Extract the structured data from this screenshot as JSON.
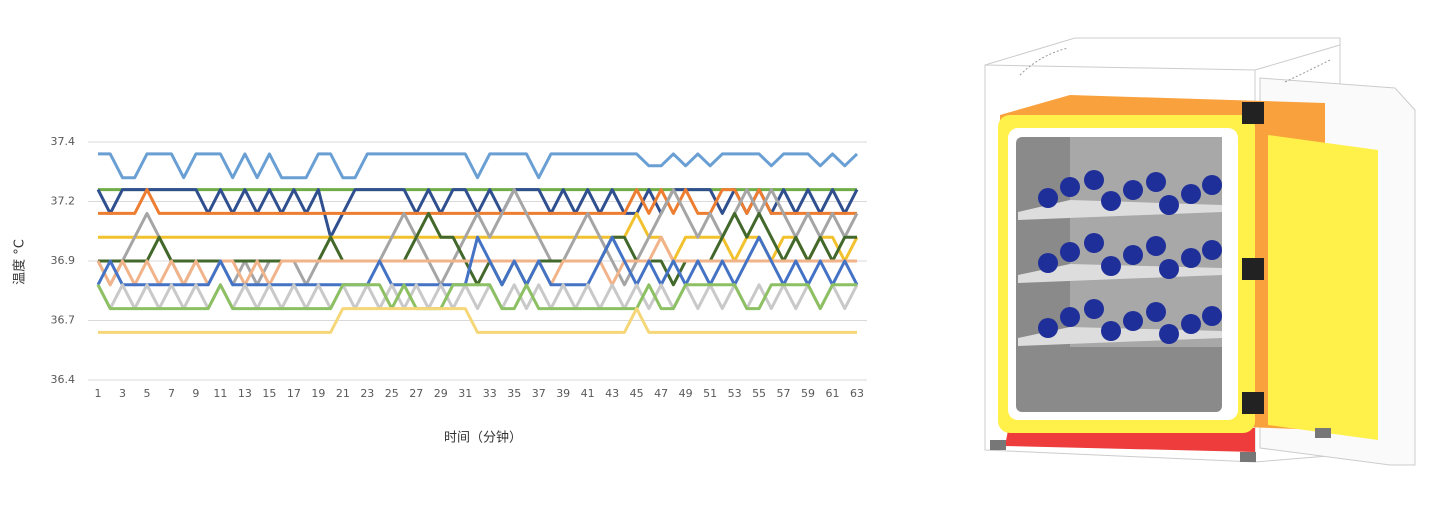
{
  "chart_data": {
    "type": "line",
    "y_label": "温度 °C",
    "x_label": "时间（分钟）",
    "x": [
      1,
      2,
      3,
      4,
      5,
      6,
      7,
      8,
      9,
      10,
      11,
      12,
      13,
      14,
      15,
      16,
      17,
      18,
      19,
      20,
      21,
      22,
      23,
      24,
      25,
      26,
      27,
      28,
      29,
      30,
      31,
      32,
      33,
      34,
      35,
      36,
      37,
      38,
      39,
      40,
      41,
      42,
      43,
      44,
      45,
      46,
      47,
      48,
      49,
      50,
      51,
      52,
      53,
      54,
      55,
      56,
      57,
      58,
      59,
      60,
      61,
      62,
      63
    ],
    "xlim": [
      1,
      63
    ],
    "xticks": [
      1,
      3,
      5,
      7,
      9,
      11,
      13,
      15,
      17,
      19,
      21,
      23,
      25,
      27,
      29,
      31,
      33,
      35,
      37,
      39,
      41,
      43,
      45,
      47,
      49,
      51,
      53,
      55,
      57,
      59,
      61,
      63
    ],
    "ylim": [
      36.4,
      37.4
    ],
    "yticks": [
      36.4,
      {
        "value": 36.65,
        "label": "36.7"
      },
      36.9,
      {
        "value": 37.15,
        "label": "37.2"
      },
      37.4
    ],
    "grid": true,
    "series": [
      {
        "color": "#6a9fd4",
        "values": [
          37.35,
          37.35,
          37.25,
          37.25,
          37.35,
          37.35,
          37.35,
          37.25,
          37.35,
          37.35,
          37.35,
          37.25,
          37.35,
          37.25,
          37.35,
          37.25,
          37.25,
          37.25,
          37.35,
          37.35,
          37.25,
          37.25,
          37.35,
          37.35,
          37.35,
          37.35,
          37.35,
          37.35,
          37.35,
          37.35,
          37.35,
          37.25,
          37.35,
          37.35,
          37.35,
          37.35,
          37.25,
          37.35,
          37.35,
          37.35,
          37.35,
          37.35,
          37.35,
          37.35,
          37.35,
          37.3,
          37.3,
          37.35,
          37.3,
          37.35,
          37.3,
          37.35,
          37.35,
          37.35,
          37.35,
          37.3,
          37.35,
          37.35,
          37.35,
          37.3,
          37.35,
          37.3,
          37.35
        ]
      },
      {
        "color": "#70ad47",
        "values": [
          37.2,
          37.2,
          37.2,
          37.2,
          37.2,
          37.2,
          37.2,
          37.2,
          37.2,
          37.2,
          37.2,
          37.2,
          37.2,
          37.2,
          37.2,
          37.2,
          37.2,
          37.2,
          37.2,
          37.2,
          37.2,
          37.2,
          37.2,
          37.2,
          37.2,
          37.2,
          37.2,
          37.2,
          37.2,
          37.2,
          37.2,
          37.2,
          37.2,
          37.2,
          37.2,
          37.2,
          37.2,
          37.2,
          37.2,
          37.2,
          37.2,
          37.2,
          37.2,
          37.2,
          37.2,
          37.2,
          37.2,
          37.2,
          37.2,
          37.2,
          37.2,
          37.2,
          37.2,
          37.2,
          37.2,
          37.2,
          37.2,
          37.2,
          37.2,
          37.2,
          37.2,
          37.2,
          37.2
        ]
      },
      {
        "color": "#2f4f8f",
        "values": [
          37.2,
          37.1,
          37.2,
          37.2,
          37.2,
          37.2,
          37.2,
          37.2,
          37.2,
          37.1,
          37.2,
          37.1,
          37.2,
          37.1,
          37.2,
          37.1,
          37.2,
          37.1,
          37.2,
          37.0,
          37.1,
          37.2,
          37.2,
          37.2,
          37.2,
          37.2,
          37.1,
          37.2,
          37.1,
          37.2,
          37.2,
          37.1,
          37.2,
          37.1,
          37.2,
          37.2,
          37.2,
          37.1,
          37.2,
          37.1,
          37.2,
          37.1,
          37.2,
          37.1,
          37.1,
          37.2,
          37.1,
          37.2,
          37.2,
          37.2,
          37.2,
          37.1,
          37.2,
          37.1,
          37.2,
          37.1,
          37.2,
          37.1,
          37.2,
          37.1,
          37.2,
          37.1,
          37.2
        ]
      },
      {
        "color": "#ed7d31",
        "values": [
          37.1,
          37.1,
          37.1,
          37.1,
          37.2,
          37.1,
          37.1,
          37.1,
          37.1,
          37.1,
          37.1,
          37.1,
          37.1,
          37.1,
          37.1,
          37.1,
          37.1,
          37.1,
          37.1,
          37.1,
          37.1,
          37.1,
          37.1,
          37.1,
          37.1,
          37.1,
          37.1,
          37.1,
          37.1,
          37.1,
          37.1,
          37.1,
          37.1,
          37.1,
          37.1,
          37.1,
          37.1,
          37.1,
          37.1,
          37.1,
          37.1,
          37.1,
          37.1,
          37.1,
          37.2,
          37.1,
          37.2,
          37.1,
          37.2,
          37.1,
          37.1,
          37.2,
          37.2,
          37.1,
          37.2,
          37.1,
          37.1,
          37.1,
          37.1,
          37.1,
          37.1,
          37.1,
          37.1
        ]
      },
      {
        "color": "#f2c22e",
        "values": [
          37.0,
          37.0,
          37.0,
          37.0,
          37.0,
          37.0,
          37.0,
          37.0,
          37.0,
          37.0,
          37.0,
          37.0,
          37.0,
          37.0,
          37.0,
          37.0,
          37.0,
          37.0,
          37.0,
          37.0,
          37.0,
          37.0,
          37.0,
          37.0,
          37.0,
          37.0,
          37.0,
          37.0,
          37.0,
          37.0,
          37.0,
          37.0,
          37.0,
          37.0,
          37.0,
          37.0,
          37.0,
          37.0,
          37.0,
          37.0,
          37.0,
          37.0,
          37.0,
          37.0,
          37.1,
          37.0,
          37.0,
          36.9,
          37.0,
          37.0,
          37.0,
          37.0,
          36.9,
          37.0,
          37.0,
          36.9,
          37.0,
          37.0,
          36.9,
          37.0,
          37.0,
          36.9,
          37.0
        ]
      },
      {
        "color": "#a5a5a5",
        "values": [
          36.9,
          36.8,
          36.9,
          37.0,
          37.1,
          37.0,
          36.9,
          36.8,
          36.9,
          36.9,
          36.9,
          36.8,
          36.9,
          36.8,
          36.9,
          36.9,
          36.9,
          36.8,
          36.9,
          36.9,
          36.9,
          36.9,
          36.9,
          36.9,
          37.0,
          37.1,
          37.0,
          36.9,
          36.8,
          36.9,
          37.0,
          37.1,
          37.0,
          37.1,
          37.2,
          37.1,
          37.0,
          36.9,
          36.9,
          37.0,
          37.1,
          37.0,
          36.9,
          36.8,
          36.9,
          37.0,
          37.1,
          37.2,
          37.1,
          37.0,
          37.1,
          37.0,
          37.1,
          37.2,
          37.1,
          37.2,
          37.1,
          37.0,
          37.1,
          37.0,
          37.1,
          37.0,
          37.1
        ]
      },
      {
        "color": "#43682b",
        "values": [
          36.9,
          36.9,
          36.9,
          36.9,
          36.9,
          37.0,
          36.9,
          36.9,
          36.9,
          36.9,
          36.9,
          36.9,
          36.9,
          36.9,
          36.9,
          36.9,
          36.9,
          36.9,
          36.9,
          37.0,
          36.9,
          36.9,
          36.9,
          36.9,
          36.9,
          36.9,
          37.0,
          37.1,
          37.0,
          37.0,
          36.9,
          36.8,
          36.9,
          36.8,
          36.9,
          36.8,
          36.9,
          36.9,
          36.9,
          36.9,
          36.9,
          36.9,
          37.0,
          37.0,
          36.9,
          36.9,
          36.9,
          36.8,
          36.9,
          36.9,
          36.9,
          37.0,
          37.1,
          37.0,
          37.1,
          37.0,
          36.9,
          37.0,
          36.9,
          37.0,
          36.9,
          37.0,
          37.0
        ]
      },
      {
        "color": "#f1b38a",
        "values": [
          36.9,
          36.8,
          36.9,
          36.8,
          36.9,
          36.8,
          36.9,
          36.8,
          36.9,
          36.8,
          36.9,
          36.9,
          36.8,
          36.9,
          36.8,
          36.9,
          36.9,
          36.9,
          36.9,
          36.9,
          36.9,
          36.9,
          36.9,
          36.9,
          36.9,
          36.9,
          36.9,
          36.9,
          36.9,
          36.9,
          36.9,
          36.9,
          36.9,
          36.9,
          36.9,
          36.9,
          36.9,
          36.8,
          36.9,
          36.9,
          36.9,
          36.9,
          36.8,
          36.9,
          36.9,
          36.9,
          37.0,
          36.9,
          36.9,
          36.9,
          36.9,
          36.9,
          36.9,
          36.9,
          36.9,
          36.9,
          36.9,
          36.9,
          36.9,
          36.9,
          36.9,
          36.9,
          36.9
        ]
      },
      {
        "color": "#4472c4",
        "values": [
          36.8,
          36.9,
          36.8,
          36.8,
          36.8,
          36.8,
          36.8,
          36.8,
          36.8,
          36.8,
          36.9,
          36.8,
          36.8,
          36.8,
          36.8,
          36.8,
          36.8,
          36.8,
          36.8,
          36.8,
          36.8,
          36.8,
          36.8,
          36.9,
          36.8,
          36.8,
          36.8,
          36.8,
          36.8,
          36.8,
          36.8,
          37.0,
          36.9,
          36.8,
          36.9,
          36.8,
          36.9,
          36.8,
          36.8,
          36.8,
          36.8,
          36.9,
          37.0,
          36.9,
          36.8,
          36.9,
          36.8,
          36.9,
          36.8,
          36.9,
          36.8,
          36.9,
          36.8,
          36.9,
          37.0,
          36.9,
          36.8,
          36.9,
          36.8,
          36.9,
          36.8,
          36.9,
          36.8
        ]
      },
      {
        "color": "#c9c9c9",
        "values": [
          36.8,
          36.7,
          36.8,
          36.7,
          36.8,
          36.7,
          36.8,
          36.7,
          36.8,
          36.7,
          36.8,
          36.7,
          36.8,
          36.7,
          36.8,
          36.7,
          36.8,
          36.7,
          36.8,
          36.7,
          36.8,
          36.7,
          36.8,
          36.7,
          36.8,
          36.7,
          36.8,
          36.7,
          36.8,
          36.7,
          36.8,
          36.7,
          36.8,
          36.7,
          36.8,
          36.7,
          36.8,
          36.7,
          36.8,
          36.7,
          36.8,
          36.7,
          36.8,
          36.7,
          36.8,
          36.7,
          36.8,
          36.7,
          36.8,
          36.7,
          36.8,
          36.7,
          36.8,
          36.7,
          36.8,
          36.7,
          36.8,
          36.7,
          36.8,
          36.7,
          36.8,
          36.7,
          36.8
        ]
      },
      {
        "color": "#8cc063",
        "values": [
          36.8,
          36.7,
          36.7,
          36.7,
          36.7,
          36.7,
          36.7,
          36.7,
          36.7,
          36.7,
          36.8,
          36.7,
          36.7,
          36.7,
          36.7,
          36.7,
          36.7,
          36.7,
          36.7,
          36.7,
          36.8,
          36.8,
          36.8,
          36.8,
          36.7,
          36.8,
          36.7,
          36.7,
          36.7,
          36.8,
          36.8,
          36.8,
          36.8,
          36.7,
          36.7,
          36.8,
          36.7,
          36.7,
          36.7,
          36.7,
          36.7,
          36.7,
          36.7,
          36.7,
          36.7,
          36.8,
          36.7,
          36.7,
          36.8,
          36.8,
          36.8,
          36.8,
          36.8,
          36.7,
          36.7,
          36.8,
          36.8,
          36.8,
          36.8,
          36.7,
          36.8,
          36.8,
          36.8
        ]
      },
      {
        "color": "#f5d77a",
        "values": [
          36.6,
          36.6,
          36.6,
          36.6,
          36.6,
          36.6,
          36.6,
          36.6,
          36.6,
          36.6,
          36.6,
          36.6,
          36.6,
          36.6,
          36.6,
          36.6,
          36.6,
          36.6,
          36.6,
          36.6,
          36.7,
          36.7,
          36.7,
          36.7,
          36.7,
          36.7,
          36.7,
          36.7,
          36.7,
          36.7,
          36.7,
          36.6,
          36.6,
          36.6,
          36.6,
          36.6,
          36.6,
          36.6,
          36.6,
          36.6,
          36.6,
          36.6,
          36.6,
          36.6,
          36.7,
          36.6,
          36.6,
          36.6,
          36.6,
          36.6,
          36.6,
          36.6,
          36.6,
          36.6,
          36.6,
          36.6,
          36.6,
          36.6,
          36.6,
          36.6,
          36.6,
          36.6,
          36.6
        ]
      }
    ]
  }
}
